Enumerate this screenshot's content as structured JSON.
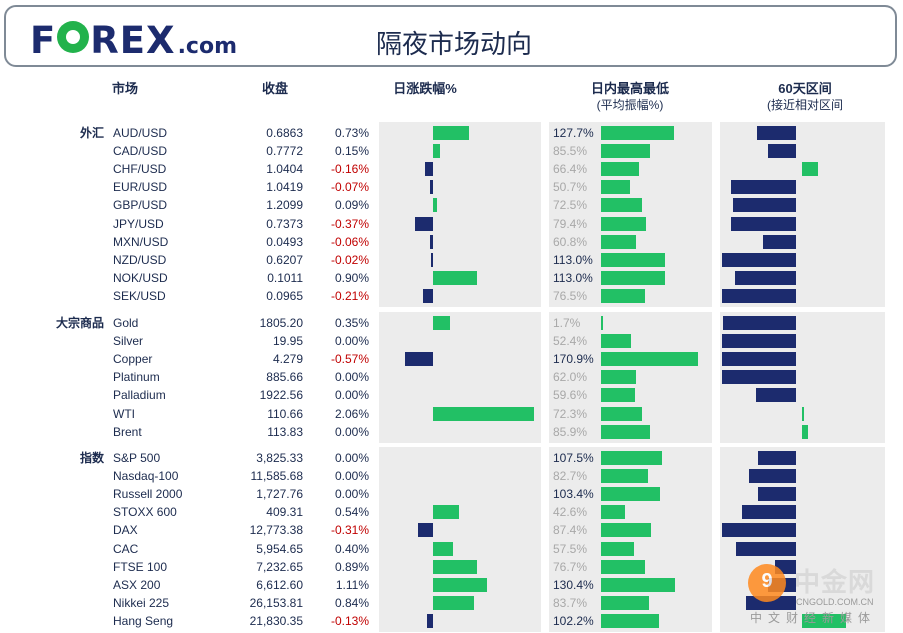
{
  "header": {
    "logo_text_a": "F",
    "logo_text_b": "REX",
    "logo_domain": ".com",
    "title": "隔夜市场动向"
  },
  "columns": {
    "market": "市场",
    "close": "收盘",
    "daily_change": "日涨跌幅%",
    "intraday_range": "日内最高最低",
    "intraday_range_sub": "(平均振幅%)",
    "sixty_day": "60天区间",
    "sixty_day_sub": "(接近相对区间"
  },
  "colors": {
    "positive": "#22c065",
    "negative": "#1c2b6e",
    "negative_text": "#c00000",
    "panel": "#ececec"
  },
  "chart_data": {
    "type": "table",
    "groups": [
      {
        "label": "外汇",
        "rows": [
          {
            "name": "AUD/USD",
            "close": "0.6863",
            "pct": "0.73%",
            "pct_value": 0.73,
            "range": "127.7%",
            "range_value": 127.7,
            "pos60": 0.53
          },
          {
            "name": "CAD/USD",
            "close": "0.7772",
            "pct": "0.15%",
            "pct_value": 0.15,
            "range": "85.5%",
            "range_value": 85.5,
            "pos60": 0.38
          },
          {
            "name": "CHF/USD",
            "close": "1.0404",
            "pct": "-0.16%",
            "pct_value": -0.16,
            "range": "66.4%",
            "range_value": 66.4,
            "pos60": -0.22
          },
          {
            "name": "EUR/USD",
            "close": "1.0419",
            "pct": "-0.07%",
            "pct_value": -0.07,
            "range": "50.7%",
            "range_value": 50.7,
            "pos60": 0.88
          },
          {
            "name": "GBP/USD",
            "close": "1.2099",
            "pct": "0.09%",
            "pct_value": 0.09,
            "range": "72.5%",
            "range_value": 72.5,
            "pos60": 0.85
          },
          {
            "name": "JPY/USD",
            "close": "0.7373",
            "pct": "-0.37%",
            "pct_value": -0.37,
            "range": "79.4%",
            "range_value": 79.4,
            "pos60": 0.88
          },
          {
            "name": "MXN/USD",
            "close": "0.0493",
            "pct": "-0.06%",
            "pct_value": -0.06,
            "range": "60.8%",
            "range_value": 60.8,
            "pos60": 0.45
          },
          {
            "name": "NZD/USD",
            "close": "0.6207",
            "pct": "-0.02%",
            "pct_value": -0.02,
            "range": "113.0%",
            "range_value": 113.0,
            "pos60": 1.0
          },
          {
            "name": "NOK/USD",
            "close": "0.1011",
            "pct": "0.90%",
            "pct_value": 0.9,
            "range": "113.0%",
            "range_value": 113.0,
            "pos60": 0.83
          },
          {
            "name": "SEK/USD",
            "close": "0.0965",
            "pct": "-0.21%",
            "pct_value": -0.21,
            "range": "76.5%",
            "range_value": 76.5,
            "pos60": 1.0
          }
        ]
      },
      {
        "label": "大宗商品",
        "rows": [
          {
            "name": "Gold",
            "close": "1805.20",
            "pct": "0.35%",
            "pct_value": 0.35,
            "range": "1.7%",
            "range_value": 1.7,
            "pos60": 0.98
          },
          {
            "name": "Silver",
            "close": "19.95",
            "pct": "0.00%",
            "pct_value": 0.0,
            "range": "52.4%",
            "range_value": 52.4,
            "pos60": 1.0
          },
          {
            "name": "Copper",
            "close": "4.279",
            "pct": "-0.57%",
            "pct_value": -0.57,
            "range": "170.9%",
            "range_value": 170.9,
            "pos60": 1.0
          },
          {
            "name": "Platinum",
            "close": "885.66",
            "pct": "0.00%",
            "pct_value": 0.0,
            "range": "62.0%",
            "range_value": 62.0,
            "pos60": 1.0
          },
          {
            "name": "Palladium",
            "close": "1922.56",
            "pct": "0.00%",
            "pct_value": 0.0,
            "range": "59.6%",
            "range_value": 59.6,
            "pos60": 0.54
          },
          {
            "name": "WTI",
            "close": "110.66",
            "pct": "2.06%",
            "pct_value": 2.06,
            "range": "72.3%",
            "range_value": 72.3,
            "pos60": -0.02
          },
          {
            "name": "Brent",
            "close": "113.83",
            "pct": "0.00%",
            "pct_value": 0.0,
            "range": "85.9%",
            "range_value": 85.9,
            "pos60": -0.08
          }
        ]
      },
      {
        "label": "指数",
        "rows": [
          {
            "name": "S&P 500",
            "close": "3,825.33",
            "pct": "0.00%",
            "pct_value": 0.0,
            "range": "107.5%",
            "range_value": 107.5,
            "pos60": 0.52
          },
          {
            "name": "Nasdaq-100",
            "close": "11,585.68",
            "pct": "0.00%",
            "pct_value": 0.0,
            "range": "82.7%",
            "range_value": 82.7,
            "pos60": 0.63
          },
          {
            "name": "Russell 2000",
            "close": "1,727.76",
            "pct": "0.00%",
            "pct_value": 0.0,
            "range": "103.4%",
            "range_value": 103.4,
            "pos60": 0.51
          },
          {
            "name": "STOXX 600",
            "close": "409.31",
            "pct": "0.54%",
            "pct_value": 0.54,
            "range": "42.6%",
            "range_value": 42.6,
            "pos60": 0.73
          },
          {
            "name": "DAX",
            "close": "12,773.38",
            "pct": "-0.31%",
            "pct_value": -0.31,
            "range": "87.4%",
            "range_value": 87.4,
            "pos60": 1.0
          },
          {
            "name": "CAC",
            "close": "5,954.65",
            "pct": "0.40%",
            "pct_value": 0.4,
            "range": "57.5%",
            "range_value": 57.5,
            "pos60": 0.81
          },
          {
            "name": "FTSE 100",
            "close": "7,232.65",
            "pct": "0.89%",
            "pct_value": 0.89,
            "range": "76.7%",
            "range_value": 76.7,
            "pos60": 0.28
          },
          {
            "name": "ASX 200",
            "close": "6,612.60",
            "pct": "1.11%",
            "pct_value": 1.11,
            "range": "130.4%",
            "range_value": 130.4,
            "pos60": 0.38
          },
          {
            "name": "Nikkei 225",
            "close": "26,153.81",
            "pct": "0.84%",
            "pct_value": 0.84,
            "range": "83.7%",
            "range_value": 83.7,
            "pos60": 0.68
          },
          {
            "name": "Hang Seng",
            "close": "21,830.35",
            "pct": "-0.13%",
            "pct_value": -0.13,
            "range": "102.2%",
            "range_value": 102.2,
            "pos60": -0.6
          }
        ]
      }
    ]
  },
  "watermark": {
    "cn": "中金网",
    "url": "CNGOLD.COM.CN",
    "tagline": "中文财经新媒体"
  }
}
